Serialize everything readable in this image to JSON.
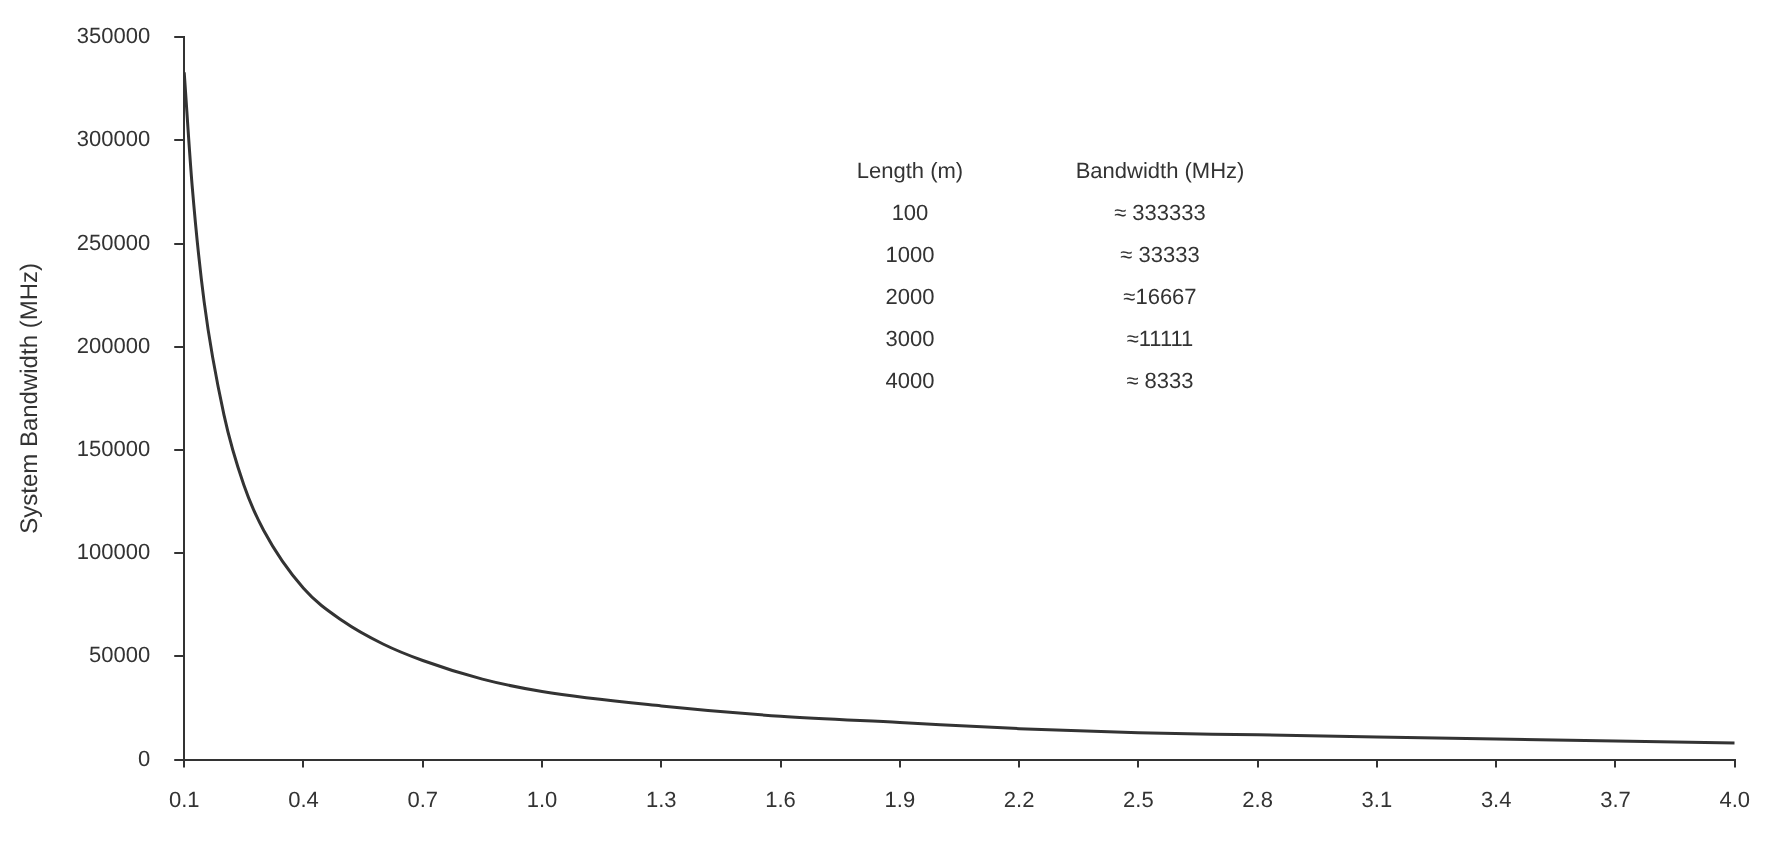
{
  "chart_data": {
    "type": "line",
    "ylabel": "System Bandwidth (MHz)",
    "x": [
      0.1,
      0.12,
      0.15,
      0.2,
      0.25,
      0.3,
      0.4,
      0.5,
      0.6,
      0.7,
      0.85,
      1.0,
      1.3,
      1.6,
      1.9,
      2.2,
      2.5,
      2.8,
      3.1,
      3.4,
      3.7,
      4.0
    ],
    "series": [
      {
        "color": "#333333",
        "values": [
          333000,
          278000,
          222000,
          167000,
          133000,
          111000,
          83000,
          67000,
          56000,
          48000,
          39000,
          33000,
          26000,
          21000,
          18000,
          15000,
          13000,
          12000,
          11000,
          10000,
          9000,
          8000
        ]
      }
    ],
    "xlim": [
      0.1,
      4.0
    ],
    "xticks": [
      0.1,
      0.4,
      0.7,
      {
        "value": 1.0,
        "label": "1.0"
      },
      1.3,
      1.6,
      1.9,
      2.2,
      2.5,
      2.8,
      3.1,
      3.4,
      3.7,
      {
        "value": 4.0,
        "label": "4.0"
      }
    ],
    "ylim": [
      0,
      350000
    ],
    "yticks": [
      0,
      50000,
      100000,
      150000,
      200000,
      250000,
      300000,
      350000
    ],
    "annotations": [
      "Length (m)",
      "Bandwidth (MHz)",
      "100",
      "≈ 333333",
      "1000",
      "≈ 33333",
      "2000",
      "≈16667",
      "3000",
      "≈11111",
      "4000",
      "≈ 8333"
    ],
    "grid": false,
    "legend": false,
    "marker": "none",
    "line_style": "solid"
  }
}
